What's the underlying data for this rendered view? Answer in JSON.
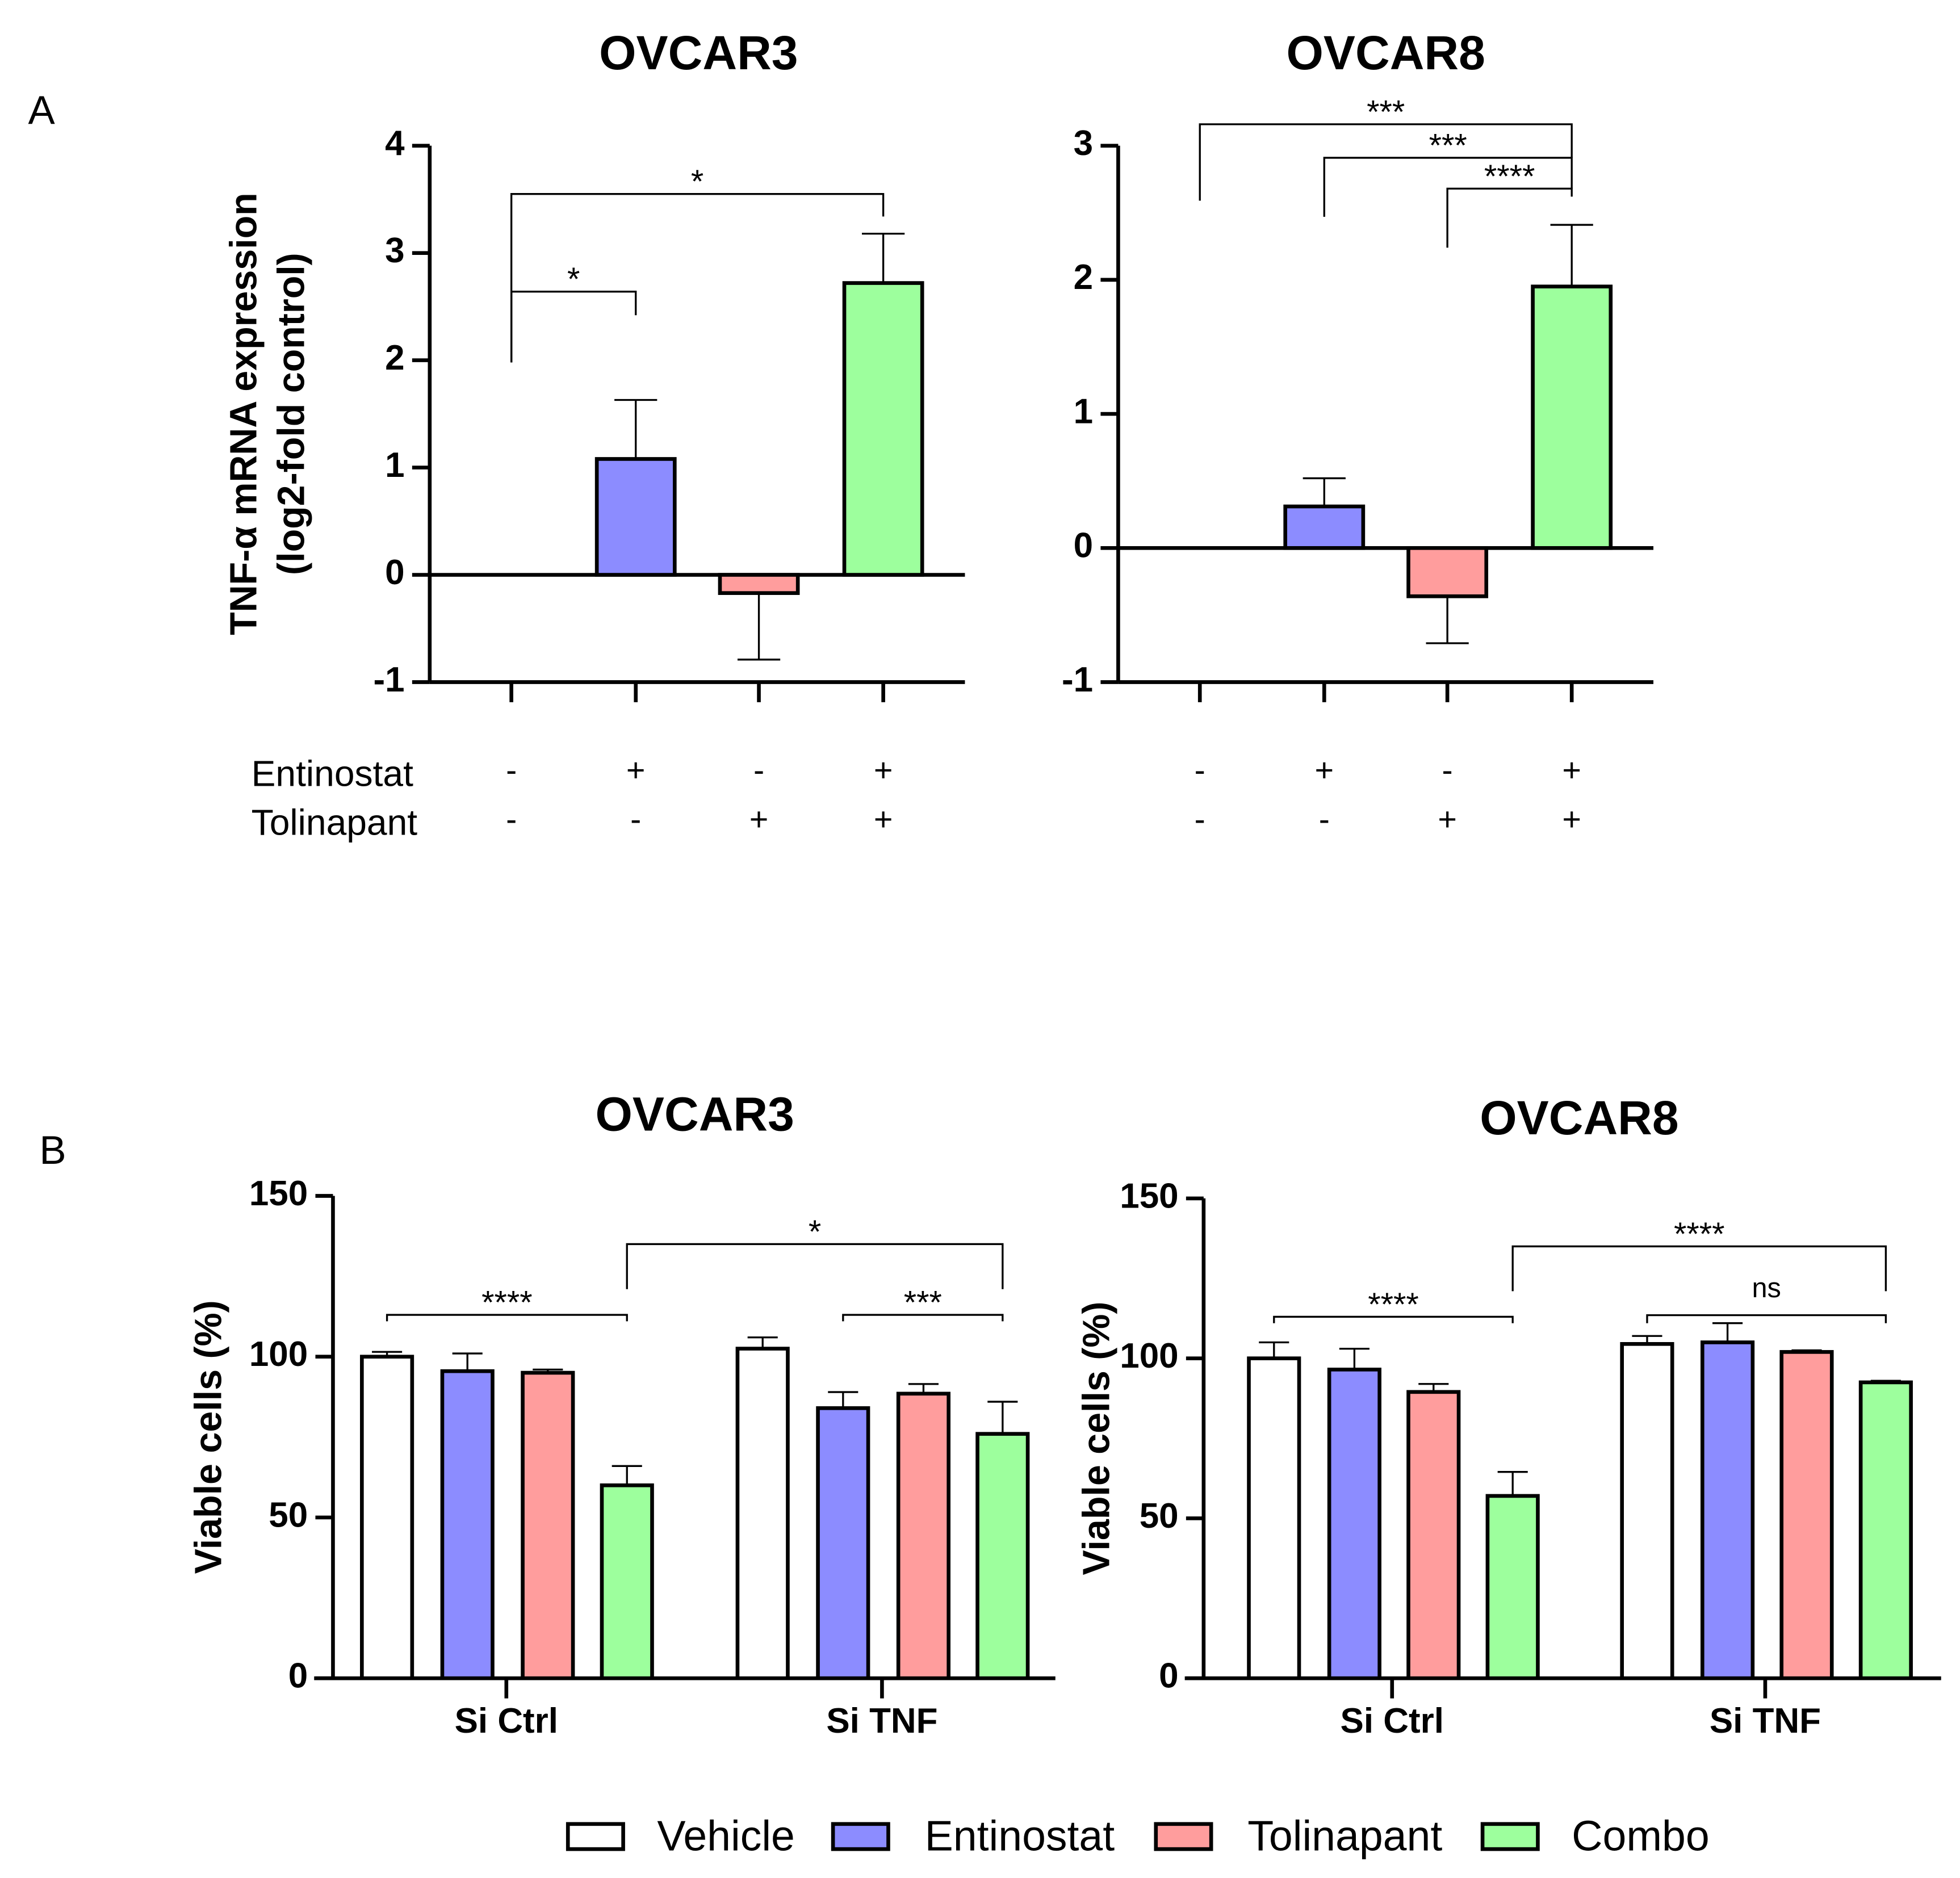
{
  "chart_data": [
    {
      "type": "bar",
      "panel_label": "A",
      "title": "OVCAR3",
      "ylabel": [
        "TNF-α mRNA expression",
        "(log2-fold control)"
      ],
      "ylim": [
        -1,
        4
      ],
      "yticks": [
        -1,
        0,
        1,
        2,
        3,
        4
      ],
      "values": [
        0,
        1.08,
        -0.17,
        2.72
      ],
      "errors": [
        0,
        0.55,
        0.62,
        0.46
      ],
      "colors": [
        "#ffffff",
        "#8c8cff",
        "#ff9d9d",
        "#9dff9d"
      ],
      "row_labels": [
        "Entinostat",
        "Tolinapant"
      ],
      "treatment_table": [
        [
          "-",
          "+",
          "-",
          "+"
        ],
        [
          "-",
          "-",
          "+",
          "+"
        ]
      ],
      "brackets": [
        {
          "from": 0,
          "to": 1,
          "label": "*",
          "y": 2.64,
          "y_left": 1.98,
          "y_right": 2.42
        },
        {
          "from": 0,
          "to": 3,
          "label": "*",
          "y": 3.55,
          "y_left": 1.98,
          "y_right": 3.34
        }
      ]
    },
    {
      "type": "bar",
      "title": "OVCAR8",
      "ylim": [
        -1,
        3
      ],
      "yticks": [
        -1,
        0,
        1,
        2,
        3
      ],
      "values": [
        0,
        0.31,
        -0.36,
        1.95
      ],
      "errors": [
        0,
        0.21,
        0.35,
        0.46
      ],
      "colors": [
        "#ffffff",
        "#8c8cff",
        "#ff9d9d",
        "#9dff9d"
      ],
      "treatment_table": [
        [
          "-",
          "+",
          "-",
          "+"
        ],
        [
          "-",
          "-",
          "+",
          "+"
        ]
      ],
      "brackets": [
        {
          "from": 0,
          "to": 3,
          "label": "***",
          "y": 3.16,
          "y_left": 2.59,
          "y_right": 2.91
        },
        {
          "from": 1,
          "to": 3,
          "label": "***",
          "y": 2.91,
          "y_left": 2.47,
          "y_right": 2.68
        },
        {
          "from": 2,
          "to": 3,
          "label": "****",
          "y": 2.68,
          "y_left": 2.24,
          "y_right": 2.62
        }
      ]
    },
    {
      "type": "grouped_bar",
      "panel_label": "B",
      "title": "OVCAR3",
      "ylabel": [
        "Viable cells (%)"
      ],
      "ylim": [
        0,
        150
      ],
      "yticks": [
        0,
        50,
        100,
        150
      ],
      "categories": [
        "Si Ctrl",
        "Si TNF"
      ],
      "series": [
        {
          "name": "Vehicle",
          "color": "#ffffff",
          "values": [
            100,
            102.5
          ],
          "errors": [
            1.5,
            3.5
          ]
        },
        {
          "name": "Entinostat",
          "color": "#8c8cff",
          "values": [
            95.5,
            84
          ],
          "errors": [
            5.5,
            5
          ]
        },
        {
          "name": "Tolinapant",
          "color": "#ff9d9d",
          "values": [
            95,
            88.5
          ],
          "errors": [
            1,
            3
          ]
        },
        {
          "name": "Combo",
          "color": "#9dff9d",
          "values": [
            60,
            76
          ],
          "errors": [
            6,
            10
          ]
        }
      ],
      "brackets": [
        {
          "from": [
            0,
            0
          ],
          "to": [
            0,
            3
          ],
          "label": "****",
          "y": 113,
          "y_left": 111,
          "y_right": 111
        },
        {
          "from": [
            1,
            1
          ],
          "to": [
            1,
            3
          ],
          "label": "***",
          "y": 113,
          "y_left": 111,
          "y_right": 111
        },
        {
          "from": [
            0,
            3
          ],
          "to": [
            1,
            3
          ],
          "label": "*",
          "y": 135,
          "y_left": 121,
          "y_right": 121
        }
      ]
    },
    {
      "type": "grouped_bar",
      "title": "OVCAR8",
      "ylabel": [
        "Viable cells (%)"
      ],
      "ylim": [
        0,
        150
      ],
      "yticks": [
        0,
        50,
        100,
        150
      ],
      "categories": [
        "Si Ctrl",
        "Si TNF"
      ],
      "series": [
        {
          "name": "Vehicle",
          "color": "#ffffff",
          "values": [
            100,
            104.5
          ],
          "errors": [
            5,
            2.5
          ]
        },
        {
          "name": "Entinostat",
          "color": "#8c8cff",
          "values": [
            96.5,
            105
          ],
          "errors": [
            6.5,
            6
          ]
        },
        {
          "name": "Tolinapant",
          "color": "#ff9d9d",
          "values": [
            89.5,
            102
          ],
          "errors": [
            2.5,
            0.5
          ]
        },
        {
          "name": "Combo",
          "color": "#9dff9d",
          "values": [
            57,
            92.5
          ],
          "errors": [
            7.5,
            0.5
          ]
        }
      ],
      "brackets": [
        {
          "from": [
            0,
            0
          ],
          "to": [
            0,
            3
          ],
          "label": "****",
          "y": 113,
          "y_left": 111,
          "y_right": 111
        },
        {
          "from": [
            1,
            0
          ],
          "to": [
            1,
            3
          ],
          "label": "ns",
          "y": 113.5,
          "y_left": 111,
          "y_right": 111
        },
        {
          "from": [
            0,
            3
          ],
          "to": [
            1,
            3
          ],
          "label": "****",
          "y": 135,
          "y_left": 121,
          "y_right": 121
        }
      ]
    }
  ]
}
